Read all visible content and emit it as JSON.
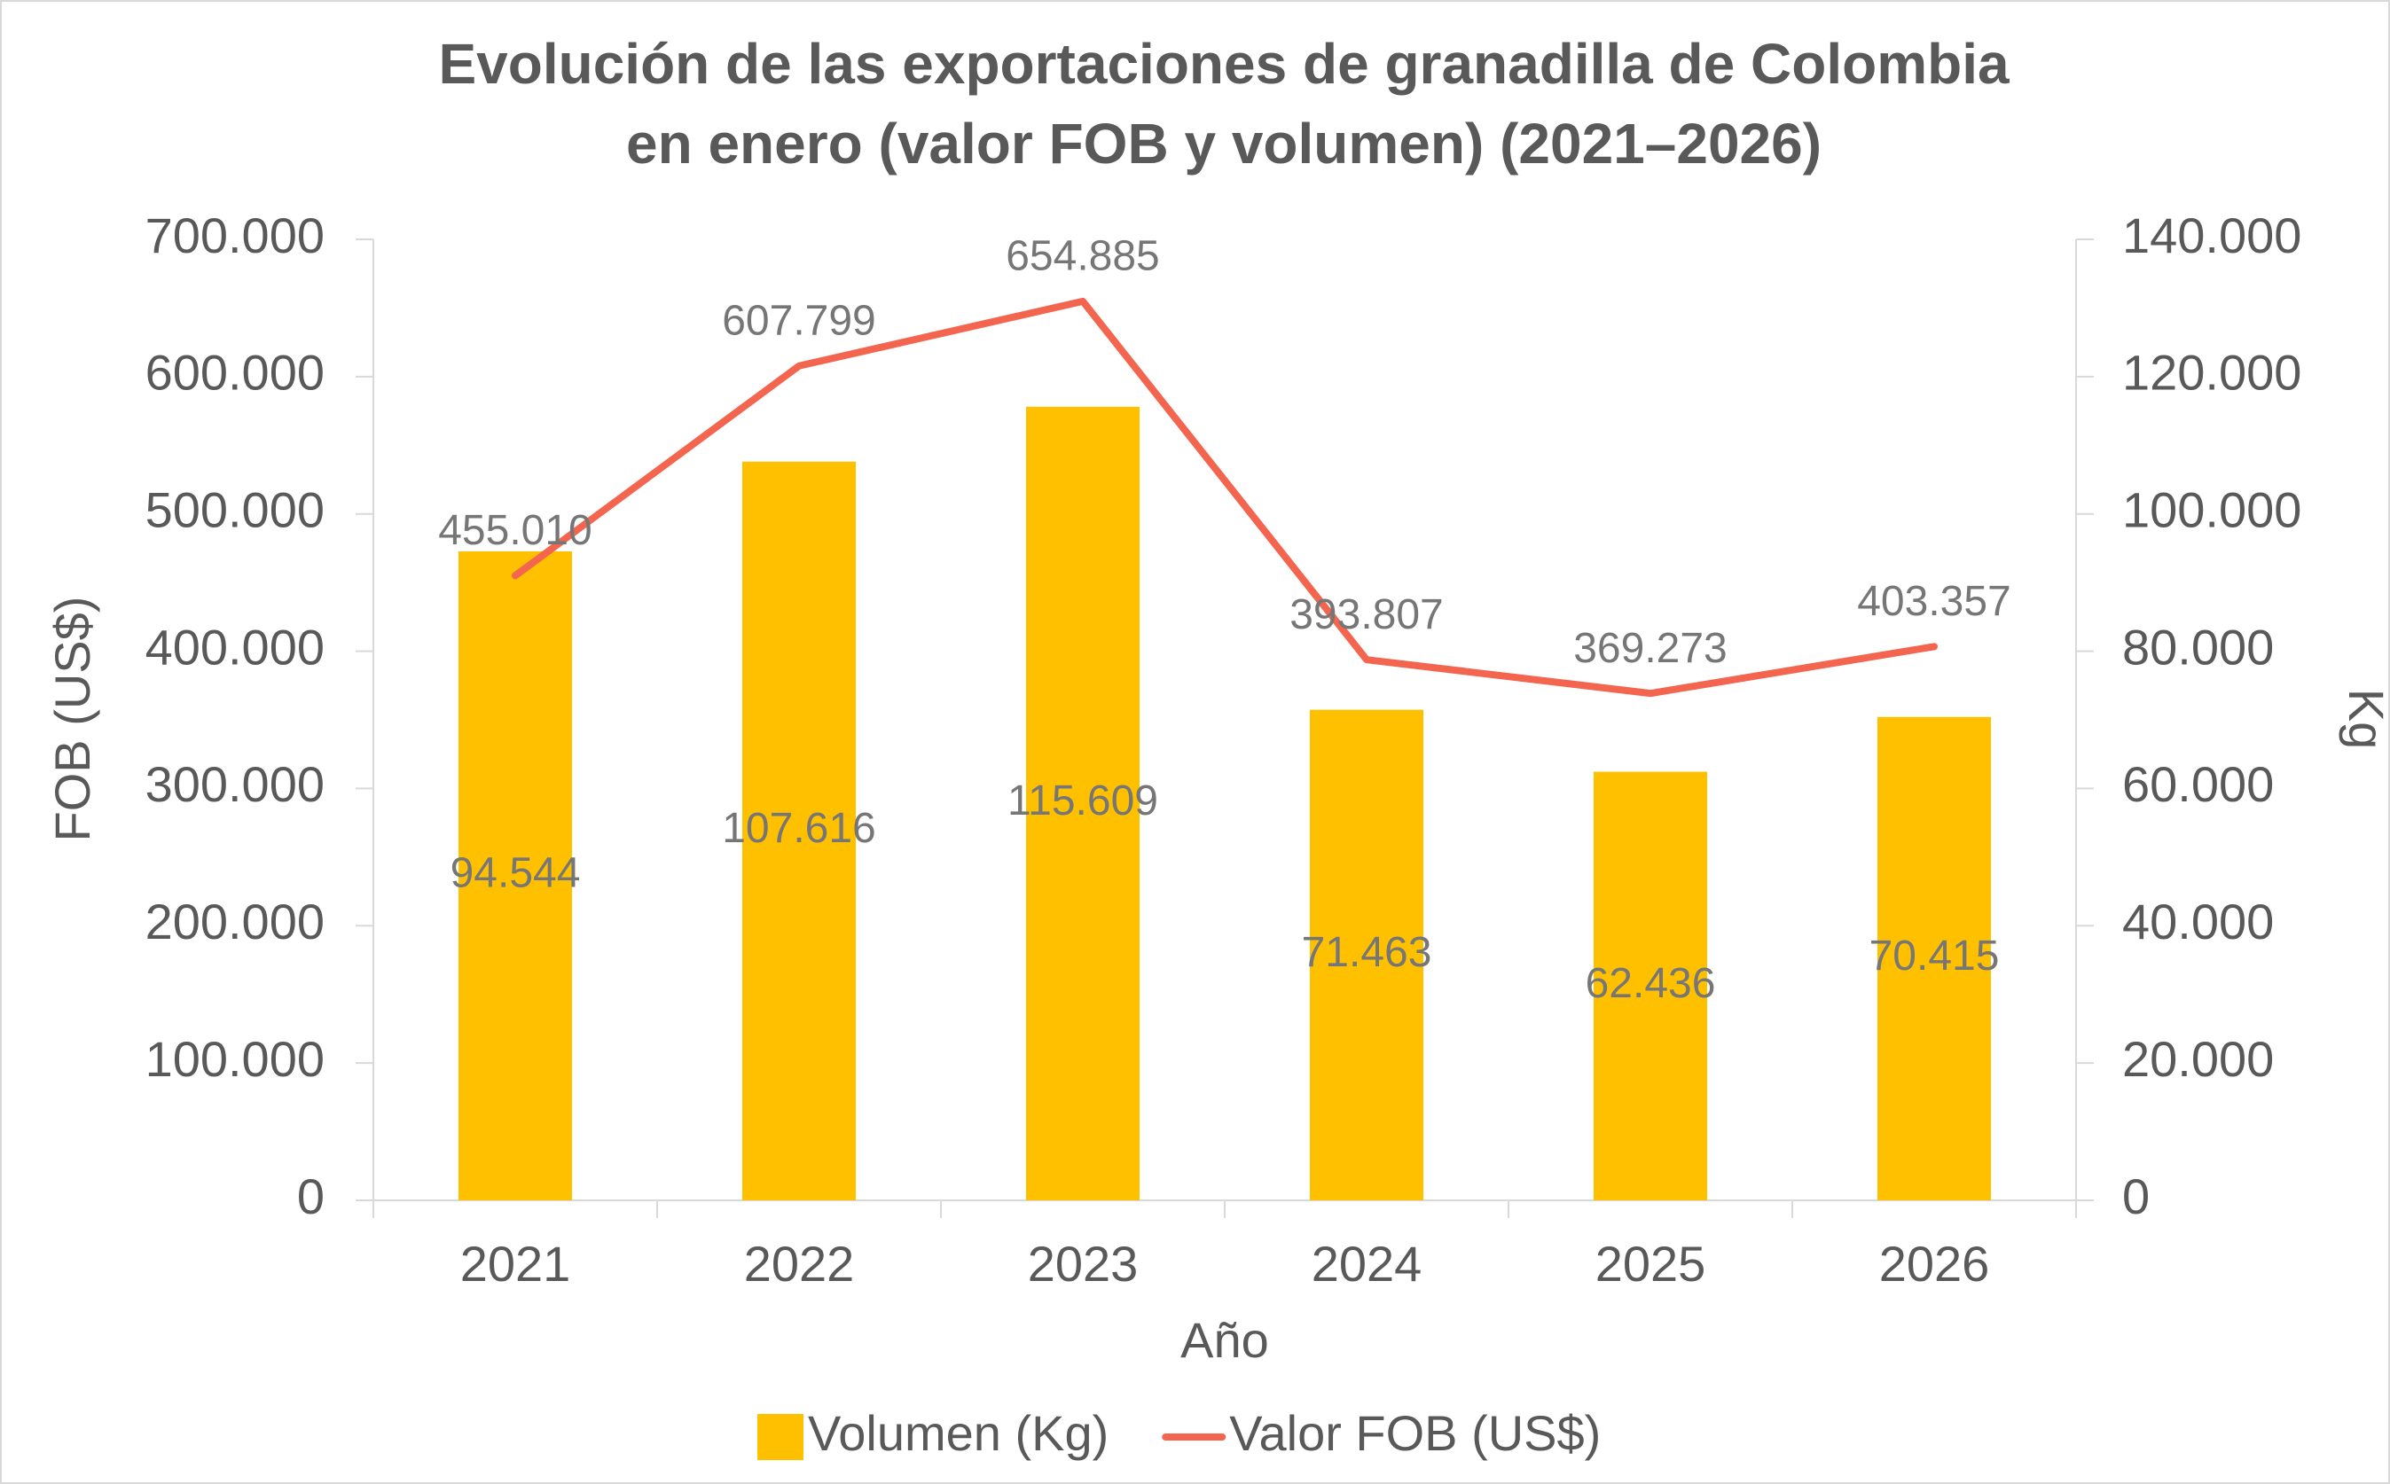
{
  "chart_data": {
    "type": "combo",
    "title": [
      "Evolución de las exportaciones de granadilla de Colombia",
      "en enero (valor FOB y volumen) (2021–2026)"
    ],
    "x_label": "Año",
    "y_label": "FOB (US$)",
    "y2_label": "Kg",
    "categories": [
      "2021",
      "2022",
      "2023",
      "2024",
      "2025",
      "2026"
    ],
    "series": [
      {
        "name": "Volumen (Kg)",
        "type": "bar",
        "axis": "y2",
        "color": "#FFC000",
        "values": [
          94544,
          107616,
          115609,
          71463,
          62436,
          70415
        ],
        "value_labels": [
          "94.544",
          "107.616",
          "115.609",
          "71.463",
          "62.436",
          "70.415"
        ]
      },
      {
        "name": "Valor FOB (US$)",
        "type": "line",
        "axis": "y",
        "color": "#F4654F",
        "values": [
          455010,
          607799,
          654885,
          393807,
          369273,
          403357
        ],
        "value_labels": [
          "455.010",
          "607.799",
          "654.885",
          "393.807",
          "369.273",
          "403.357"
        ]
      }
    ],
    "ylim": [
      0,
      700000
    ],
    "yticks": [
      0,
      {
        "value": 100000,
        "label": "100.000"
      },
      {
        "value": 200000,
        "label": "200.000"
      },
      {
        "value": 300000,
        "label": "300.000"
      },
      {
        "value": 400000,
        "label": "400.000"
      },
      {
        "value": 500000,
        "label": "500.000"
      },
      {
        "value": 600000,
        "label": "600.000"
      },
      {
        "value": 700000,
        "label": "700.000"
      }
    ],
    "y2lim": [
      0,
      140000
    ],
    "y2ticks": [
      0,
      {
        "value": 20000,
        "label": "20.000"
      },
      {
        "value": 40000,
        "label": "40.000"
      },
      {
        "value": 60000,
        "label": "60.000"
      },
      {
        "value": 80000,
        "label": "80.000"
      },
      {
        "value": 100000,
        "label": "100.000"
      },
      {
        "value": 120000,
        "label": "120.000"
      },
      {
        "value": 140000,
        "label": "140.000"
      }
    ],
    "grid": false,
    "legend": "bottom"
  }
}
